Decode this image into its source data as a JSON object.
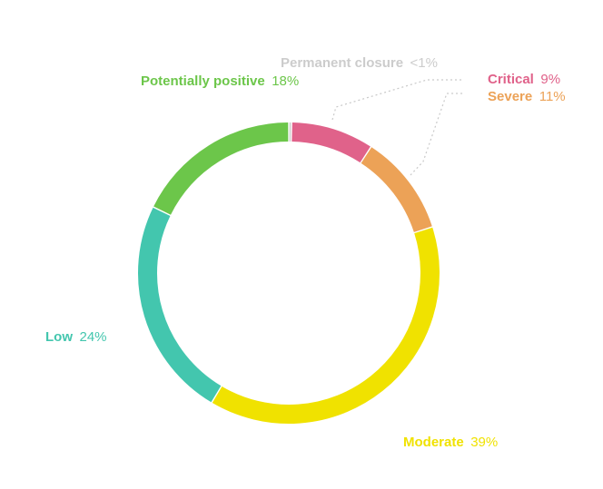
{
  "chart_data": {
    "type": "pie",
    "variant": "donut-ring",
    "start": "top",
    "direction": "clockwise",
    "slices": [
      {
        "name": "Permanent closure",
        "value": 0.3,
        "label": "<1%",
        "color": "#cccccc"
      },
      {
        "name": "Critical",
        "value": 9,
        "label": "9%",
        "color": "#e0628a"
      },
      {
        "name": "Severe",
        "value": 11,
        "label": "11%",
        "color": "#eca257"
      },
      {
        "name": "Moderate",
        "value": 39,
        "label": "39%",
        "color": "#f0e200"
      },
      {
        "name": "Low",
        "value": 24,
        "label": "24%",
        "color": "#43c6ae"
      },
      {
        "name": "Potentially positive",
        "value": 18,
        "label": "18%",
        "color": "#6cc64a"
      }
    ],
    "leader_line_color": "#c9c9c9"
  }
}
